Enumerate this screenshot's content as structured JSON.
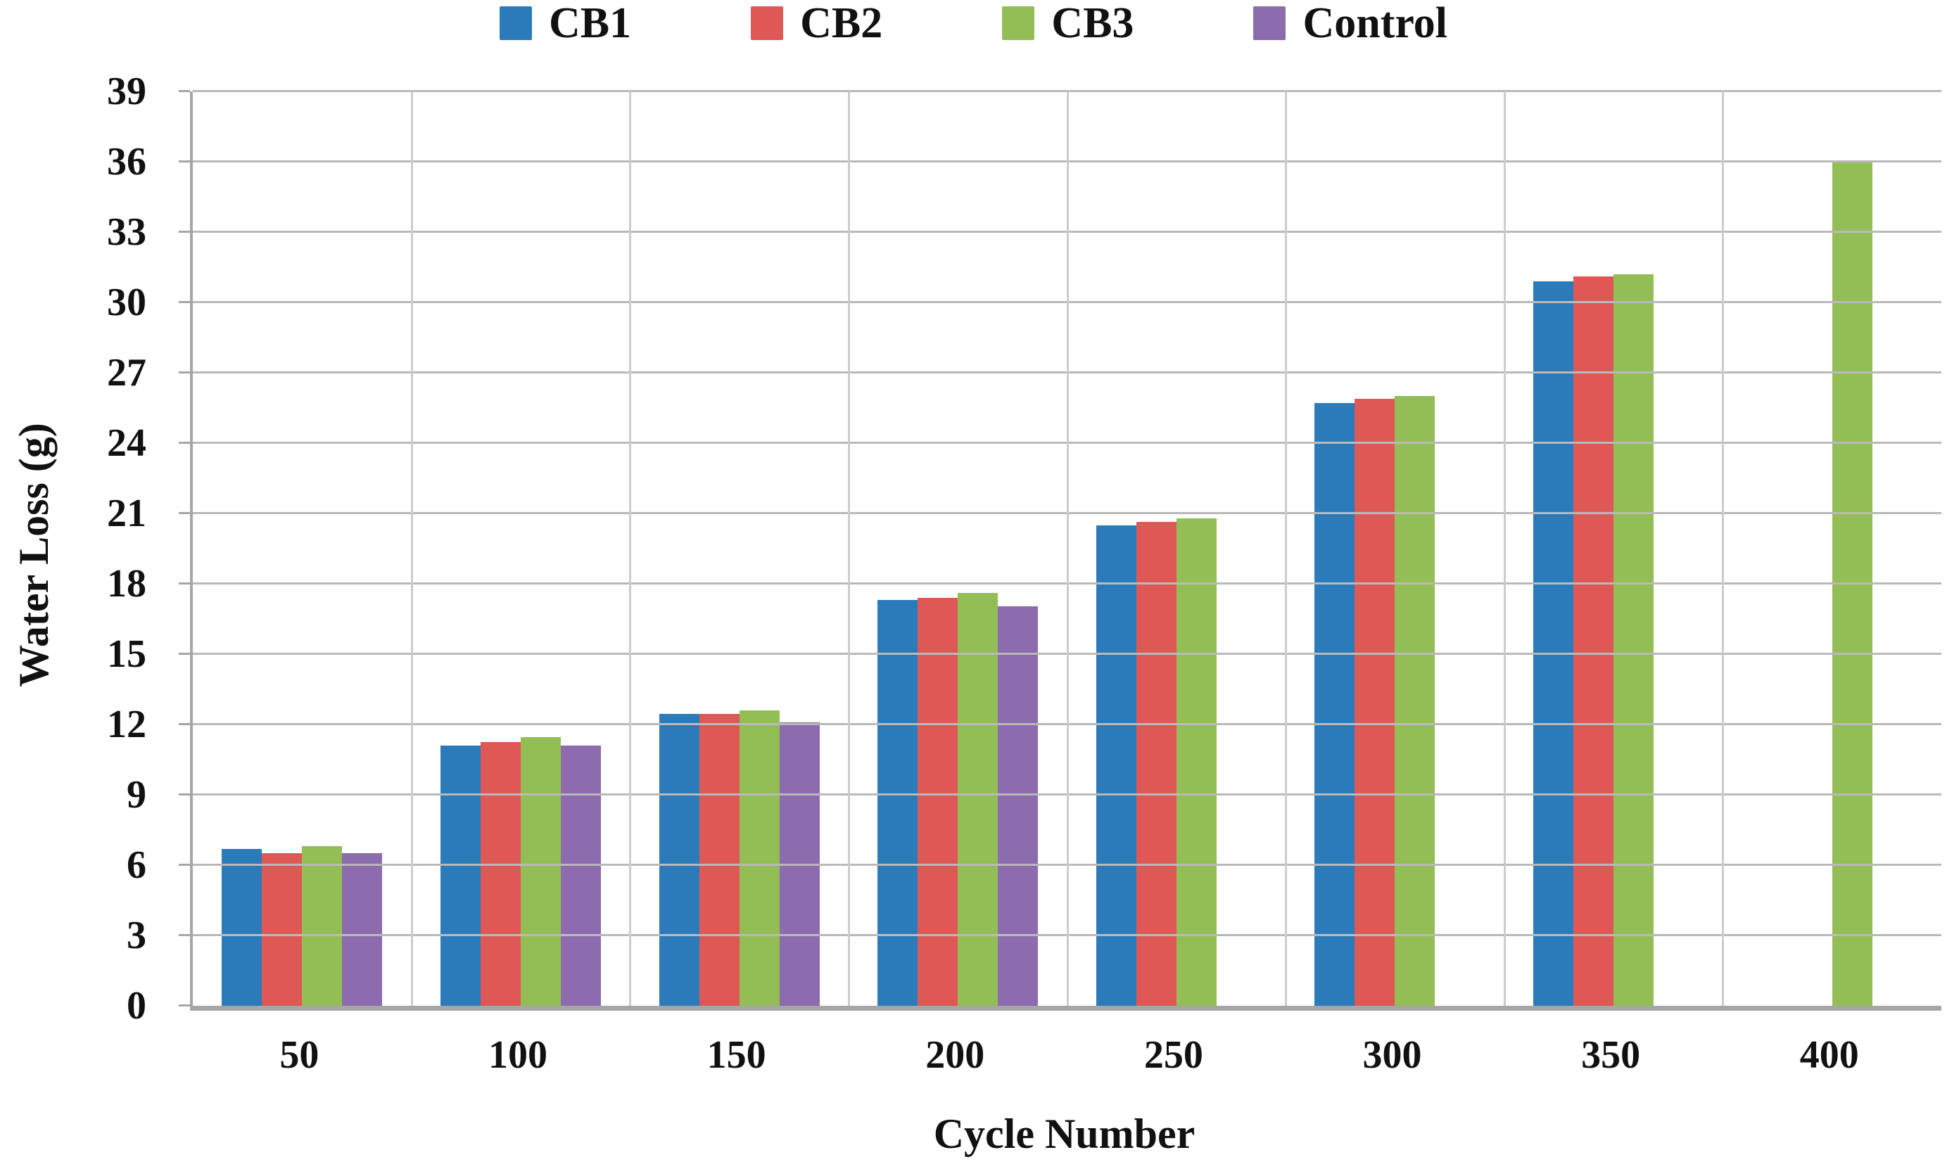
{
  "chart_data": {
    "type": "bar",
    "title": "",
    "xlabel": "Cycle Number",
    "ylabel": "Water Loss (g)",
    "categories": [
      "50",
      "100",
      "150",
      "200",
      "250",
      "300",
      "350",
      "400"
    ],
    "series": [
      {
        "name": "CB1",
        "color": "#2B7BBA",
        "values": [
          6.7,
          11.1,
          12.45,
          17.3,
          20.5,
          25.7,
          30.9,
          null
        ]
      },
      {
        "name": "CB2",
        "color": "#DE5956",
        "values": [
          6.5,
          11.25,
          12.45,
          17.4,
          20.65,
          25.9,
          31.1,
          null
        ]
      },
      {
        "name": "CB3",
        "color": "#93BE55",
        "values": [
          6.8,
          11.45,
          12.6,
          17.6,
          20.8,
          26.0,
          31.2,
          36.0
        ]
      },
      {
        "name": "Control",
        "color": "#8C6BAE",
        "values": [
          6.5,
          11.1,
          12.1,
          17.05,
          null,
          null,
          null,
          null
        ]
      }
    ],
    "ylim": [
      0,
      39
    ],
    "yticks": [
      0,
      3,
      6,
      9,
      12,
      15,
      18,
      21,
      24,
      27,
      30,
      33,
      36,
      39
    ],
    "grid": true,
    "legend_position": "top",
    "colors": {
      "gridline": "#b9b9b9",
      "axis": "#a6a6a6",
      "category_separator": "#cccccc",
      "text": "#111111"
    }
  }
}
